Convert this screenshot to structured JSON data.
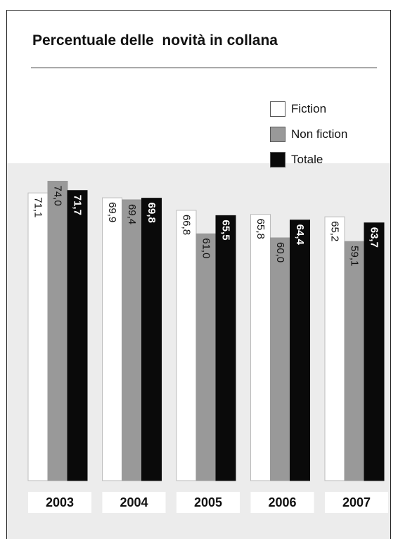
{
  "title": "Percentuale delle  novità in collana",
  "colors": {
    "fiction": "#ffffff",
    "non_fiction": "#999999",
    "totale": "#0a0a0a"
  },
  "chart_data": {
    "type": "bar",
    "title": "Percentuale delle  novità in collana",
    "categories": [
      "2003",
      "2004",
      "2005",
      "2006",
      "2007"
    ],
    "series": [
      {
        "name": "Fiction",
        "values": [
          71.1,
          69.9,
          66.8,
          65.8,
          65.2
        ],
        "labels": [
          "71,1",
          "69,9",
          "66,8",
          "65,8",
          "65,2"
        ]
      },
      {
        "name": "Non fiction",
        "values": [
          74.0,
          69.4,
          61.0,
          60.0,
          59.1
        ],
        "labels": [
          "74,0",
          "69,4",
          "61,0",
          "60,0",
          "59,1"
        ]
      },
      {
        "name": "Totale",
        "values": [
          71.7,
          69.8,
          65.5,
          64.4,
          63.7
        ],
        "labels": [
          "71,7",
          "69,8",
          "65,5",
          "64,4",
          "63,7"
        ]
      }
    ],
    "legend_position": "top-right",
    "grid": false
  }
}
